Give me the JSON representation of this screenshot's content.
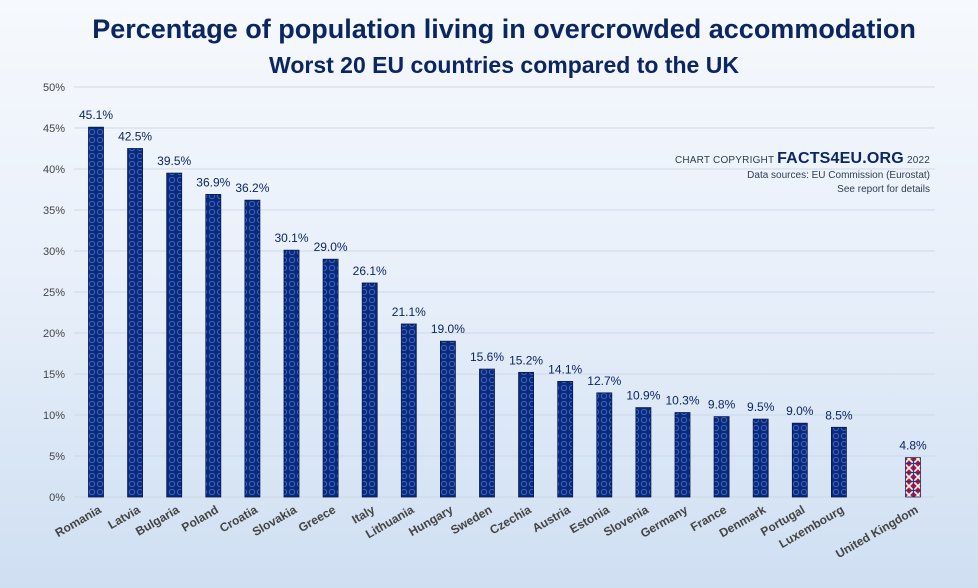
{
  "chart_data": {
    "type": "bar",
    "title": "Percentage of population living in overcrowded accommodation",
    "subtitle": "Worst 20 EU countries compared to the UK",
    "categories": [
      "Romania",
      "Latvia",
      "Bulgaria",
      "Poland",
      "Croatia",
      "Slovakia",
      "Greece",
      "Italy",
      "Lithuania",
      "Hungary",
      "Sweden",
      "Czechia",
      "Austria",
      "Estonia",
      "Slovenia",
      "Germany",
      "France",
      "Denmark",
      "Portugal",
      "Luxembourg",
      "United Kingdom"
    ],
    "values": [
      45.1,
      42.5,
      39.5,
      36.9,
      36.2,
      30.1,
      29.0,
      26.1,
      21.1,
      19.0,
      15.6,
      15.2,
      14.1,
      12.7,
      10.9,
      10.3,
      9.8,
      9.5,
      9.0,
      8.5,
      4.8
    ],
    "data_labels": [
      "45.1%",
      "42.5%",
      "39.5%",
      "36.9%",
      "36.2%",
      "30.1%",
      "29.0%",
      "26.1%",
      "21.1%",
      "19.0%",
      "15.6%",
      "15.2%",
      "14.1%",
      "12.7%",
      "10.9%",
      "10.3%",
      "9.8%",
      "9.5%",
      "9.0%",
      "8.5%",
      "4.8%"
    ],
    "y_ticks": [
      "0%",
      "5%",
      "10%",
      "15%",
      "20%",
      "25%",
      "30%",
      "35%",
      "40%",
      "45%",
      "50%"
    ],
    "ylim": [
      0,
      50
    ],
    "y_tick_step": 5,
    "grid": true,
    "xlabel": "",
    "ylabel": "",
    "colors": {
      "eu_bar": "#0a2a7a",
      "eu_pattern": "#3d62c4",
      "uk_bar": "#c8102e",
      "uk_pattern": "#ffffff",
      "grid": "#cdd8e8",
      "axis_text": "#444444",
      "label_text": "#0b2660"
    }
  },
  "credits": {
    "copyright_prefix": "CHART COPYRIGHT",
    "brand": "FACTS4EU.ORG",
    "year": "2022",
    "sources": "Data sources: EU Commission (Eurostat)",
    "details": "See report for details"
  }
}
